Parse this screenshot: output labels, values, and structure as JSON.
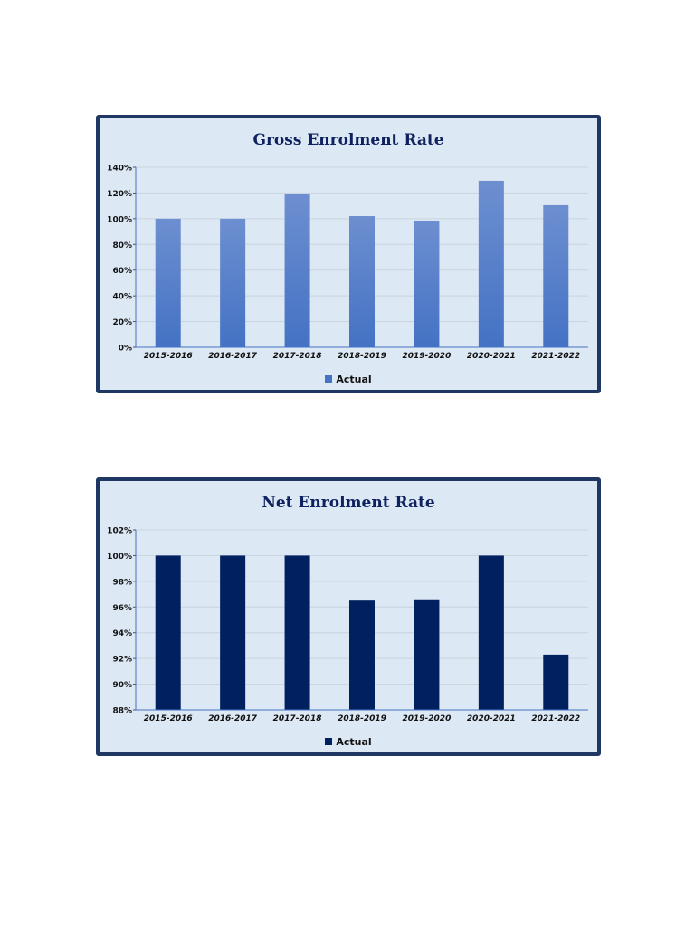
{
  "chart_data": [
    {
      "type": "bar",
      "title": "Gross Enrolment Rate",
      "categories": [
        "2015-2016",
        "2016-2017",
        "2017-2018",
        "2018-2019",
        "2019-2020",
        "2020-2021",
        "2021-2022"
      ],
      "series": [
        {
          "name": "Actual",
          "values": [
            100,
            100,
            119.5,
            102,
            98.5,
            129.5,
            110.5
          ]
        }
      ],
      "ylim": [
        0,
        140
      ],
      "yticks": [
        0,
        20,
        40,
        60,
        80,
        100,
        120,
        140
      ],
      "ytick_labels": [
        "0%",
        "20%",
        "40%",
        "60%",
        "80%",
        "100%",
        "120%",
        "140%"
      ],
      "grid": true,
      "legend": "bottom",
      "color": "#4472c4",
      "color_light": "#6d8fd0"
    },
    {
      "type": "bar",
      "title": "Net Enrolment Rate",
      "categories": [
        "2015-2016",
        "2016-2017",
        "2017-2018",
        "2018-2019",
        "2019-2020",
        "2020-2021",
        "2021-2022"
      ],
      "series": [
        {
          "name": "Actual",
          "values": [
            100,
            100,
            100,
            96.5,
            96.6,
            100,
            92.3
          ]
        }
      ],
      "ylim": [
        88,
        102
      ],
      "yticks": [
        88,
        90,
        92,
        94,
        96,
        98,
        100,
        102
      ],
      "ytick_labels": [
        "88%",
        "90%",
        "92%",
        "94%",
        "96%",
        "98%",
        "100%",
        "102%"
      ],
      "grid": true,
      "legend": "bottom",
      "color": "#00205f",
      "color_light": "#00205f"
    }
  ]
}
